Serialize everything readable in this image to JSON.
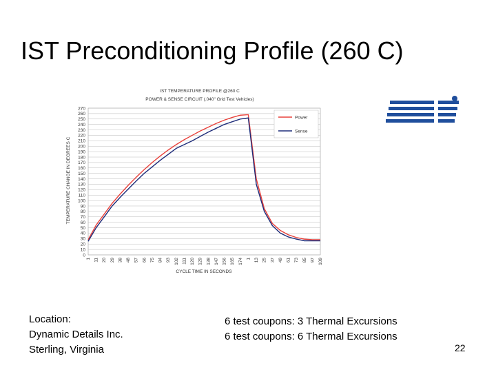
{
  "slide": {
    "title": "IST Preconditioning Profile (260 C)",
    "location_lines": [
      "Location:",
      "Dynamic Details Inc.",
      "Sterling, Virginia"
    ],
    "coupon_lines": [
      "6 test coupons: 3 Thermal Excursions",
      "6 test coupons: 6 Thermal Excursions"
    ],
    "page_number": "22"
  },
  "chart_data": {
    "type": "line",
    "title_lines": [
      "IST TEMPERATURE PROFILE @260 C",
      "POWER & SENSE CIRCUIT (.040\" Grid Test Vehicles)"
    ],
    "x_label": "CYCLE TIME IN SECONDS",
    "y_label": "TEMPERATURE CHANGE IN DEGREES C",
    "categories": [
      "1",
      "11",
      "20",
      "29",
      "38",
      "48",
      "57",
      "66",
      "75",
      "84",
      "93",
      "102",
      "111",
      "120",
      "129",
      "138",
      "147",
      "156",
      "165",
      "174",
      "1",
      "13",
      "25",
      "37",
      "49",
      "61",
      "73",
      "85",
      "97",
      "109"
    ],
    "series": [
      {
        "name": "Power",
        "color": "#e8403a",
        "values": [
          28,
          55,
          75,
          95,
          112,
          128,
          143,
          157,
          170,
          182,
          193,
          203,
          212,
          220,
          228,
          235,
          242,
          248,
          253,
          257,
          258,
          140,
          85,
          58,
          45,
          37,
          32,
          29,
          28,
          28
        ]
      },
      {
        "name": "Sense",
        "color": "#1f2d7a",
        "values": [
          25,
          50,
          70,
          90,
          106,
          121,
          136,
          150,
          162,
          174,
          185,
          196,
          203,
          210,
          218,
          226,
          233,
          240,
          245,
          250,
          252,
          130,
          80,
          54,
          40,
          33,
          29,
          26,
          26,
          26
        ]
      }
    ],
    "ylim": [
      0,
      270
    ],
    "yticks": [
      0,
      10,
      20,
      30,
      40,
      50,
      60,
      70,
      80,
      90,
      100,
      110,
      120,
      130,
      140,
      150,
      160,
      170,
      180,
      190,
      200,
      210,
      220,
      230,
      240,
      250,
      260,
      270
    ],
    "grid": true,
    "legend": "right"
  }
}
